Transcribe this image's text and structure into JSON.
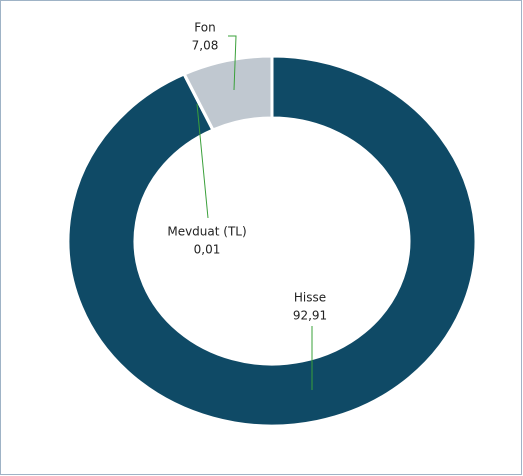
{
  "chart_data": {
    "type": "donut",
    "categories": [
      "Hisse",
      "Mevduat (TL)",
      "Fon"
    ],
    "values": [
      92.91,
      0.01,
      7.08
    ],
    "value_labels": [
      "92,91",
      "0,01",
      "7,08"
    ],
    "colors": [
      "#0f4a66",
      "#4a7fa0",
      "#c0c8d0"
    ]
  }
}
